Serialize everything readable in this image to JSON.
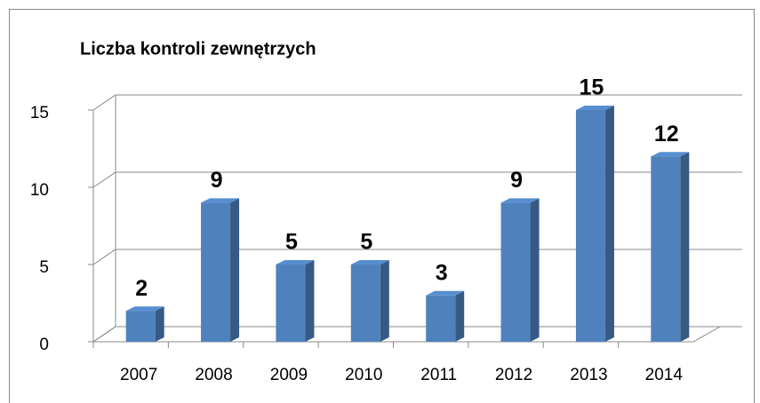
{
  "chart_data": {
    "type": "bar3d",
    "title": "Liczba kontroli zewnętrzych",
    "categories": [
      "2007",
      "2008",
      "2009",
      "2010",
      "2011",
      "2012",
      "2013",
      "2014"
    ],
    "values": [
      2,
      9,
      5,
      5,
      3,
      9,
      15,
      12
    ],
    "color": "#4f81bd",
    "ylim": [
      0,
      15
    ],
    "yticks": [
      0,
      5,
      10,
      15
    ],
    "grid": true
  }
}
